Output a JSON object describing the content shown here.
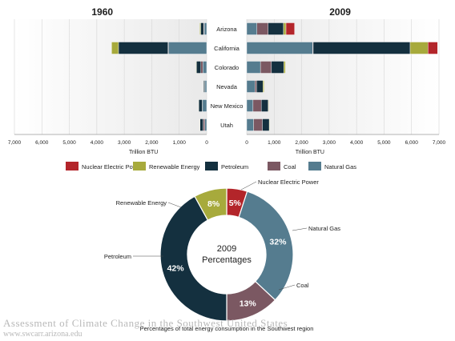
{
  "chart_data": [
    {
      "type": "bar",
      "orientation": "horizontal-stacked",
      "title_left": "1960",
      "title_right": "2009",
      "xlabel": "Trillion BTU",
      "xlim": [
        0,
        7000
      ],
      "xticks": [
        "7,000",
        "6,000",
        "5,000",
        "4,000",
        "3,000",
        "2,000",
        "1,000",
        "0"
      ],
      "xticks_right": [
        "0",
        "1,000",
        "2,000",
        "3,000",
        "4,000",
        "5,000",
        "6,000",
        "7,000"
      ],
      "categories": [
        "Arizona",
        "California",
        "Colorado",
        "Nevada",
        "New Mexico",
        "Utah"
      ],
      "series_1960": [
        {
          "name": "Natural Gas",
          "values": [
            90,
            1390,
            140,
            60,
            150,
            70
          ]
        },
        {
          "name": "Coal",
          "values": [
            20,
            20,
            70,
            10,
            10,
            60
          ]
        },
        {
          "name": "Petroleum",
          "values": [
            110,
            1800,
            160,
            40,
            130,
            110
          ]
        },
        {
          "name": "Renewable Energy",
          "values": [
            30,
            250,
            20,
            5,
            5,
            10
          ]
        },
        {
          "name": "Nuclear Electric Power",
          "values": [
            0,
            0,
            0,
            0,
            0,
            0
          ]
        }
      ],
      "series_2009": [
        {
          "name": "Natural Gas",
          "values": [
            370,
            2400,
            500,
            300,
            230,
            250
          ]
        },
        {
          "name": "Coal",
          "values": [
            410,
            20,
            400,
            60,
            300,
            320
          ]
        },
        {
          "name": "Petroleum",
          "values": [
            560,
            3530,
            450,
            230,
            250,
            250
          ]
        },
        {
          "name": "Renewable Energy",
          "values": [
            90,
            650,
            60,
            40,
            20,
            20
          ]
        },
        {
          "name": "Nuclear Electric Power",
          "values": [
            310,
            350,
            0,
            0,
            0,
            0
          ]
        }
      ],
      "legend": [
        "Nuclear Electric Power",
        "Renewable Energy",
        "Petroleum",
        "Coal",
        "Natural Gas"
      ],
      "colors": {
        "Nuclear Electric Power": "#b3252a",
        "Renewable Energy": "#a7aa3c",
        "Petroleum": "#14303f",
        "Coal": "#7b5862",
        "Natural Gas": "#557c8f"
      },
      "grid": true
    },
    {
      "type": "pie",
      "donut": true,
      "center_label": [
        "2009",
        "Percentages"
      ],
      "caption": "Percentages of total energy consumption in the Southwest region",
      "slices": [
        {
          "name": "Nuclear Electric Power",
          "value": 5,
          "label": "5%",
          "color": "#b3252a"
        },
        {
          "name": "Natural Gas",
          "value": 32,
          "label": "32%",
          "color": "#557c8f"
        },
        {
          "name": "Coal",
          "value": 13,
          "label": "13%",
          "color": "#7b5862"
        },
        {
          "name": "Petroleum",
          "value": 42,
          "label": "42%",
          "color": "#14303f"
        },
        {
          "name": "Renewable Energy",
          "value": 8,
          "label": "8%",
          "color": "#a7aa3c"
        }
      ]
    }
  ],
  "footer": {
    "title": "Assessment of Climate Change in the Southwest United States",
    "url": "www.swcarr.arizona.edu"
  }
}
